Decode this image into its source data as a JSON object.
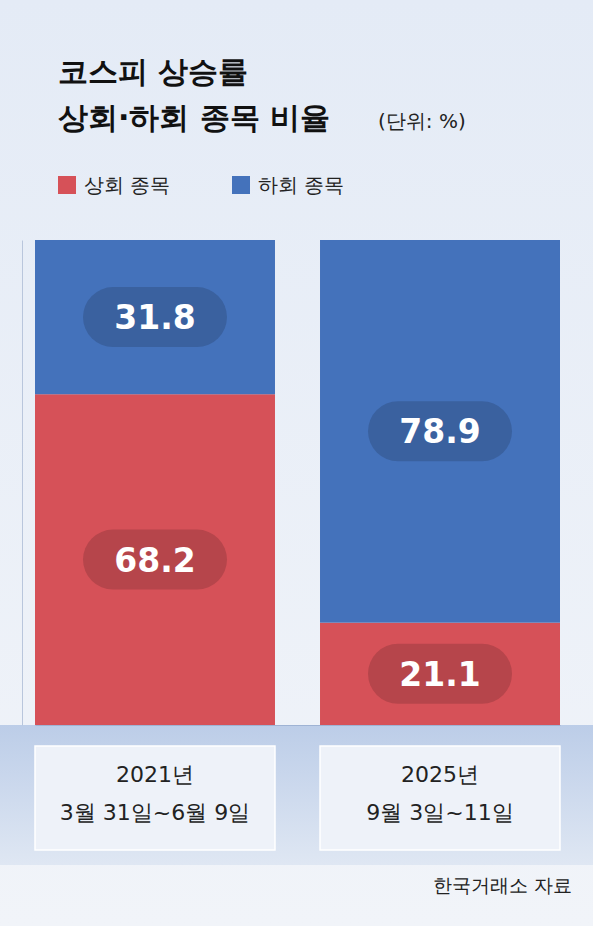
{
  "chart_data": {
    "type": "bar",
    "stacked": true,
    "title": "코스피 상승률\n상회·하회 종목 비율",
    "subtitle": "(단위: %)",
    "categories": [
      "2021년\n3월 31일~6월 9일",
      "2025년\n9월 3일~11일"
    ],
    "series": [
      {
        "name": "상회 종목",
        "color": "#d65158",
        "values": [
          68.2,
          21.1
        ]
      },
      {
        "name": "하회 종목",
        "color": "#4472bb",
        "values": [
          31.8,
          78.9
        ]
      }
    ],
    "ylim": [
      0,
      100
    ],
    "yticks": [],
    "tick_labels": "x",
    "data_labels": true,
    "legend": "top",
    "source": "한국거래소 자료"
  }
}
